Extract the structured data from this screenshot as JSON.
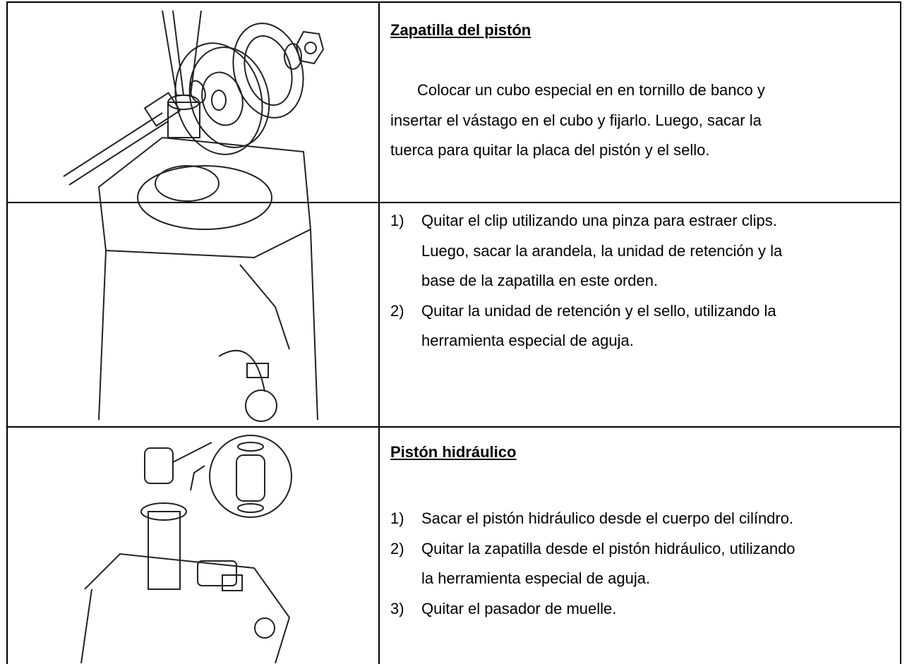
{
  "rows": [
    {
      "title": "Zapatilla del pistón",
      "paragraph": [
        "Colocar un cubo especial en en tornillo de banco y",
        "insertar el vástago en el cubo y fijarlo. Luego, sacar la",
        "tuerca para quitar la placa del pistón y el sello."
      ]
    },
    {
      "items": [
        {
          "number": "1)",
          "lines": [
            "Quitar el clip utilizando una pinza para estraer clips.",
            "Luego, sacar la arandela, la unidad de retención y la",
            "base de la zapatilla en este orden."
          ]
        },
        {
          "number": "2)",
          "lines": [
            "Quitar la unidad de retención y el sello, utilizando la",
            "herramienta especial de aguja."
          ]
        }
      ]
    },
    {
      "title": "Pistón hidráulico",
      "items": [
        {
          "number": "1)",
          "lines": [
            "Sacar el pistón hidráulico desde el cuerpo del cilíndro."
          ]
        },
        {
          "number": "2)",
          "lines": [
            "Quitar la zapatilla desde el pistón hidráulico, utilizando",
            "la herramienta especial de aguja."
          ]
        },
        {
          "number": "3)",
          "lines": [
            "Quitar el pasador de muelle."
          ]
        }
      ]
    }
  ]
}
